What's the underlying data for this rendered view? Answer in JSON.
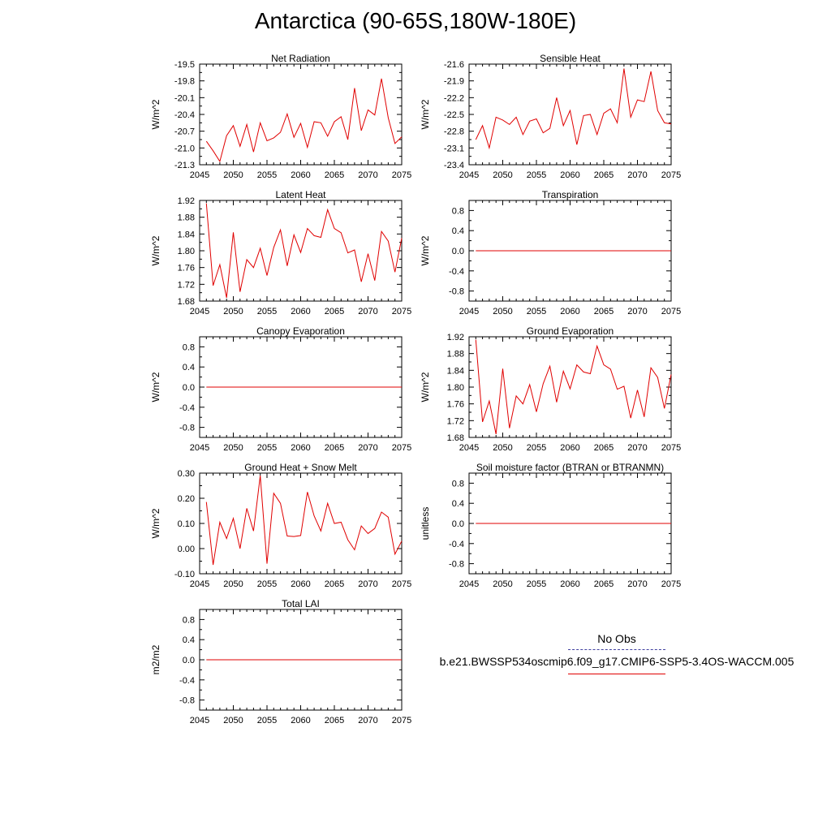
{
  "figure": {
    "title": "Antarctica (90-65S,180W-180E)",
    "legend": {
      "obs_label": "No Obs",
      "model_label": "b.e21.BWSSP534oscmip6.f09_g17.CMIP6-SSP5-3.4OS-WACCM.005"
    },
    "colors": {
      "line": "#e00000",
      "axis": "#000000",
      "legend_dash": "#4040a0"
    }
  },
  "chart_data": [
    {
      "id": "net-radiation",
      "type": "line",
      "title": "Net Radiation",
      "ylabel": "W/m^2",
      "xlim": [
        2045,
        2075
      ],
      "ylim": [
        -21.3,
        -19.5
      ],
      "xticks": [
        2045,
        2050,
        2055,
        2060,
        2065,
        2070,
        2075
      ],
      "xticklabels": [
        "2045",
        "2050",
        "2055",
        "2060",
        "2065",
        "2070",
        "2075"
      ],
      "yticks": [
        -21.3,
        -21.0,
        -20.7,
        -20.4,
        -20.1,
        -19.8,
        -19.5
      ],
      "yticklabels": [
        "-21.3",
        "-21.0",
        "-20.7",
        "-20.4",
        "-20.1",
        "-19.8",
        "-19.5"
      ],
      "x": [
        2046,
        2047,
        2048,
        2049,
        2050,
        2051,
        2052,
        2053,
        2054,
        2055,
        2056,
        2057,
        2058,
        2059,
        2060,
        2061,
        2062,
        2063,
        2064,
        2065,
        2066,
        2067,
        2068,
        2069,
        2070,
        2071,
        2072,
        2073,
        2074,
        2075
      ],
      "values": [
        -20.88,
        -21.05,
        -21.24,
        -20.78,
        -20.6,
        -20.97,
        -20.58,
        -21.07,
        -20.55,
        -20.87,
        -20.82,
        -20.72,
        -20.39,
        -20.81,
        -20.56,
        -20.99,
        -20.53,
        -20.55,
        -20.79,
        -20.53,
        -20.44,
        -20.85,
        -19.93,
        -20.69,
        -20.32,
        -20.41,
        -19.76,
        -20.46,
        -20.92,
        -20.8
      ]
    },
    {
      "id": "sensible-heat",
      "type": "line",
      "title": "Sensible Heat",
      "ylabel": "W/m^2",
      "xlim": [
        2045,
        2075
      ],
      "ylim": [
        -23.4,
        -21.6
      ],
      "xticks": [
        2045,
        2050,
        2055,
        2060,
        2065,
        2070,
        2075
      ],
      "xticklabels": [
        "2045",
        "2050",
        "2055",
        "2060",
        "2065",
        "2070",
        "2075"
      ],
      "yticks": [
        -23.4,
        -23.1,
        -22.8,
        -22.5,
        -22.2,
        -21.9,
        -21.6
      ],
      "yticklabels": [
        "-23.4",
        "-23.1",
        "-22.8",
        "-22.5",
        "-22.2",
        "-21.9",
        "-21.6"
      ],
      "x": [
        2046,
        2047,
        2048,
        2049,
        2050,
        2051,
        2052,
        2053,
        2054,
        2055,
        2056,
        2057,
        2058,
        2059,
        2060,
        2061,
        2062,
        2063,
        2064,
        2065,
        2066,
        2067,
        2068,
        2069,
        2070,
        2071,
        2072,
        2073,
        2074,
        2075
      ],
      "values": [
        -22.95,
        -22.7,
        -23.1,
        -22.55,
        -22.6,
        -22.68,
        -22.55,
        -22.86,
        -22.62,
        -22.58,
        -22.83,
        -22.75,
        -22.2,
        -22.7,
        -22.43,
        -23.04,
        -22.52,
        -22.5,
        -22.86,
        -22.48,
        -22.4,
        -22.65,
        -21.68,
        -22.55,
        -22.24,
        -22.27,
        -21.73,
        -22.43,
        -22.65,
        -22.67
      ]
    },
    {
      "id": "latent-heat",
      "type": "line",
      "title": "Latent Heat",
      "ylabel": "W/m^2",
      "xlim": [
        2045,
        2075
      ],
      "ylim": [
        1.68,
        1.92
      ],
      "xticks": [
        2045,
        2050,
        2055,
        2060,
        2065,
        2070,
        2075
      ],
      "xticklabels": [
        "2045",
        "2050",
        "2055",
        "2060",
        "2065",
        "2070",
        "2075"
      ],
      "yticks": [
        1.68,
        1.72,
        1.76,
        1.8,
        1.84,
        1.88,
        1.92
      ],
      "yticklabels": [
        "1.68",
        "1.72",
        "1.76",
        "1.80",
        "1.84",
        "1.88",
        "1.92"
      ],
      "x": [
        2046,
        2047,
        2048,
        2049,
        2050,
        2051,
        2052,
        2053,
        2054,
        2055,
        2056,
        2057,
        2058,
        2059,
        2060,
        2061,
        2062,
        2063,
        2064,
        2065,
        2066,
        2067,
        2068,
        2069,
        2070,
        2071,
        2072,
        2073,
        2074,
        2075
      ],
      "values": [
        1.913,
        1.717,
        1.767,
        1.688,
        1.844,
        1.702,
        1.779,
        1.76,
        1.806,
        1.741,
        1.808,
        1.85,
        1.764,
        1.838,
        1.796,
        1.853,
        1.836,
        1.832,
        1.898,
        1.853,
        1.843,
        1.795,
        1.802,
        1.726,
        1.793,
        1.729,
        1.846,
        1.823,
        1.749,
        1.83
      ]
    },
    {
      "id": "transpiration",
      "type": "line",
      "title": "Transpiration",
      "ylabel": "W/m^2",
      "xlim": [
        2045,
        2075
      ],
      "ylim": [
        -1.0,
        1.0
      ],
      "xticks": [
        2045,
        2050,
        2055,
        2060,
        2065,
        2070,
        2075
      ],
      "xticklabels": [
        "2045",
        "2050",
        "2055",
        "2060",
        "2065",
        "2070",
        "2075"
      ],
      "yticks": [
        -0.8,
        -0.4,
        0.0,
        0.4,
        0.8
      ],
      "yticklabels": [
        "-0.8",
        "-0.4",
        "0.0",
        "0.4",
        "0.8"
      ],
      "x": [
        2046,
        2075
      ],
      "values": [
        0.0,
        0.0
      ]
    },
    {
      "id": "canopy-evaporation",
      "type": "line",
      "title": "Canopy Evaporation",
      "ylabel": "W/m^2",
      "xlim": [
        2045,
        2075
      ],
      "ylim": [
        -1.0,
        1.0
      ],
      "xticks": [
        2045,
        2050,
        2055,
        2060,
        2065,
        2070,
        2075
      ],
      "xticklabels": [
        "2045",
        "2050",
        "2055",
        "2060",
        "2065",
        "2070",
        "2075"
      ],
      "yticks": [
        -0.8,
        -0.4,
        0.0,
        0.4,
        0.8
      ],
      "yticklabels": [
        "-0.8",
        "-0.4",
        "0.0",
        "0.4",
        "0.8"
      ],
      "x": [
        2046,
        2075
      ],
      "values": [
        0.0,
        0.0
      ]
    },
    {
      "id": "ground-evaporation",
      "type": "line",
      "title": "Ground Evaporation",
      "ylabel": "W/m^2",
      "xlim": [
        2045,
        2075
      ],
      "ylim": [
        1.68,
        1.92
      ],
      "xticks": [
        2045,
        2050,
        2055,
        2060,
        2065,
        2070,
        2075
      ],
      "xticklabels": [
        "2045",
        "2050",
        "2055",
        "2060",
        "2065",
        "2070",
        "2075"
      ],
      "yticks": [
        1.68,
        1.72,
        1.76,
        1.8,
        1.84,
        1.88,
        1.92
      ],
      "yticklabels": [
        "1.68",
        "1.72",
        "1.76",
        "1.80",
        "1.84",
        "1.88",
        "1.92"
      ],
      "x": [
        2046,
        2047,
        2048,
        2049,
        2050,
        2051,
        2052,
        2053,
        2054,
        2055,
        2056,
        2057,
        2058,
        2059,
        2060,
        2061,
        2062,
        2063,
        2064,
        2065,
        2066,
        2067,
        2068,
        2069,
        2070,
        2071,
        2072,
        2073,
        2074,
        2075
      ],
      "values": [
        1.913,
        1.717,
        1.767,
        1.688,
        1.844,
        1.702,
        1.779,
        1.76,
        1.806,
        1.741,
        1.808,
        1.85,
        1.764,
        1.838,
        1.796,
        1.853,
        1.836,
        1.832,
        1.898,
        1.853,
        1.843,
        1.795,
        1.802,
        1.726,
        1.793,
        1.729,
        1.846,
        1.823,
        1.749,
        1.83
      ]
    },
    {
      "id": "ground-heat-snow-melt",
      "type": "line",
      "title": "Ground Heat + Snow Melt",
      "ylabel": "W/m^2",
      "xlim": [
        2045,
        2075
      ],
      "ylim": [
        -0.1,
        0.3
      ],
      "xticks": [
        2045,
        2050,
        2055,
        2060,
        2065,
        2070,
        2075
      ],
      "xticklabels": [
        "2045",
        "2050",
        "2055",
        "2060",
        "2065",
        "2070",
        "2075"
      ],
      "yticks": [
        -0.1,
        0.0,
        0.1,
        0.2,
        0.3
      ],
      "yticklabels": [
        "-0.10",
        "0.00",
        "0.10",
        "0.20",
        "0.30"
      ],
      "x": [
        2046,
        2047,
        2048,
        2049,
        2050,
        2051,
        2052,
        2053,
        2054,
        2055,
        2056,
        2057,
        2058,
        2059,
        2060,
        2061,
        2062,
        2063,
        2064,
        2065,
        2066,
        2067,
        2068,
        2069,
        2070,
        2071,
        2072,
        2073,
        2074,
        2075
      ],
      "values": [
        0.185,
        -0.065,
        0.105,
        0.04,
        0.12,
        0.0,
        0.16,
        0.07,
        0.29,
        -0.06,
        0.22,
        0.18,
        0.05,
        0.048,
        0.052,
        0.225,
        0.13,
        0.07,
        0.18,
        0.1,
        0.105,
        0.035,
        -0.005,
        0.09,
        0.06,
        0.08,
        0.145,
        0.125,
        -0.022,
        0.03
      ]
    },
    {
      "id": "soil-moisture-factor",
      "type": "line",
      "title": "Soil moisture factor (BTRAN or BTRANMN)",
      "ylabel": "unitless",
      "xlim": [
        2045,
        2075
      ],
      "ylim": [
        -1.0,
        1.0
      ],
      "xticks": [
        2045,
        2050,
        2055,
        2060,
        2065,
        2070,
        2075
      ],
      "xticklabels": [
        "2045",
        "2050",
        "2055",
        "2060",
        "2065",
        "2070",
        "2075"
      ],
      "yticks": [
        -0.8,
        -0.4,
        0.0,
        0.4,
        0.8
      ],
      "yticklabels": [
        "-0.8",
        "-0.4",
        "0.0",
        "0.4",
        "0.8"
      ],
      "x": [
        2046,
        2075
      ],
      "values": [
        0.0,
        0.0
      ]
    },
    {
      "id": "total-lai",
      "type": "line",
      "title": "Total LAI",
      "ylabel": "m2/m2",
      "xlim": [
        2045,
        2075
      ],
      "ylim": [
        -1.0,
        1.0
      ],
      "xticks": [
        2045,
        2050,
        2055,
        2060,
        2065,
        2070,
        2075
      ],
      "xticklabels": [
        "2045",
        "2050",
        "2055",
        "2060",
        "2065",
        "2070",
        "2075"
      ],
      "yticks": [
        -0.8,
        -0.4,
        0.0,
        0.4,
        0.8
      ],
      "yticklabels": [
        "-0.8",
        "-0.4",
        "0.0",
        "0.4",
        "0.8"
      ],
      "x": [
        2046,
        2075
      ],
      "values": [
        0.0,
        0.0
      ]
    }
  ]
}
